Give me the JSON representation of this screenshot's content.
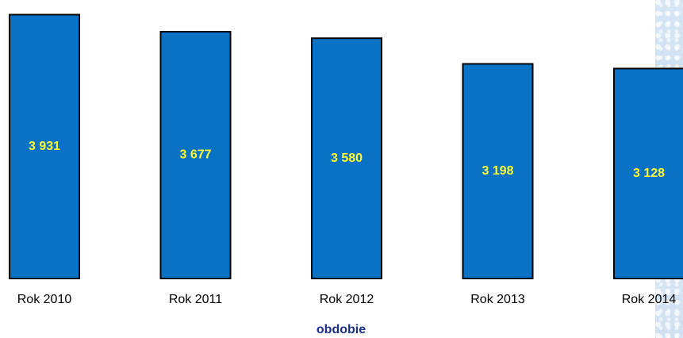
{
  "chart_data": {
    "type": "bar",
    "categories": [
      "Rok 2010",
      "Rok 2011",
      "Rok 2012",
      "Rok 2013",
      "Rok 2014"
    ],
    "values": [
      3931,
      3677,
      3580,
      3198,
      3128
    ],
    "value_labels": [
      "3 931",
      "3 677",
      "3 580",
      "3 198",
      "3 128"
    ],
    "title": "",
    "xlabel": "obdobie",
    "ylabel": "",
    "ylim": [
      0,
      4150
    ],
    "grid": false,
    "legend": "none",
    "colors": {
      "bar": "#0a72c4",
      "bar_outline": "#000000",
      "data_label": "#ffff33",
      "axis_label": "#1a2f8a"
    }
  }
}
